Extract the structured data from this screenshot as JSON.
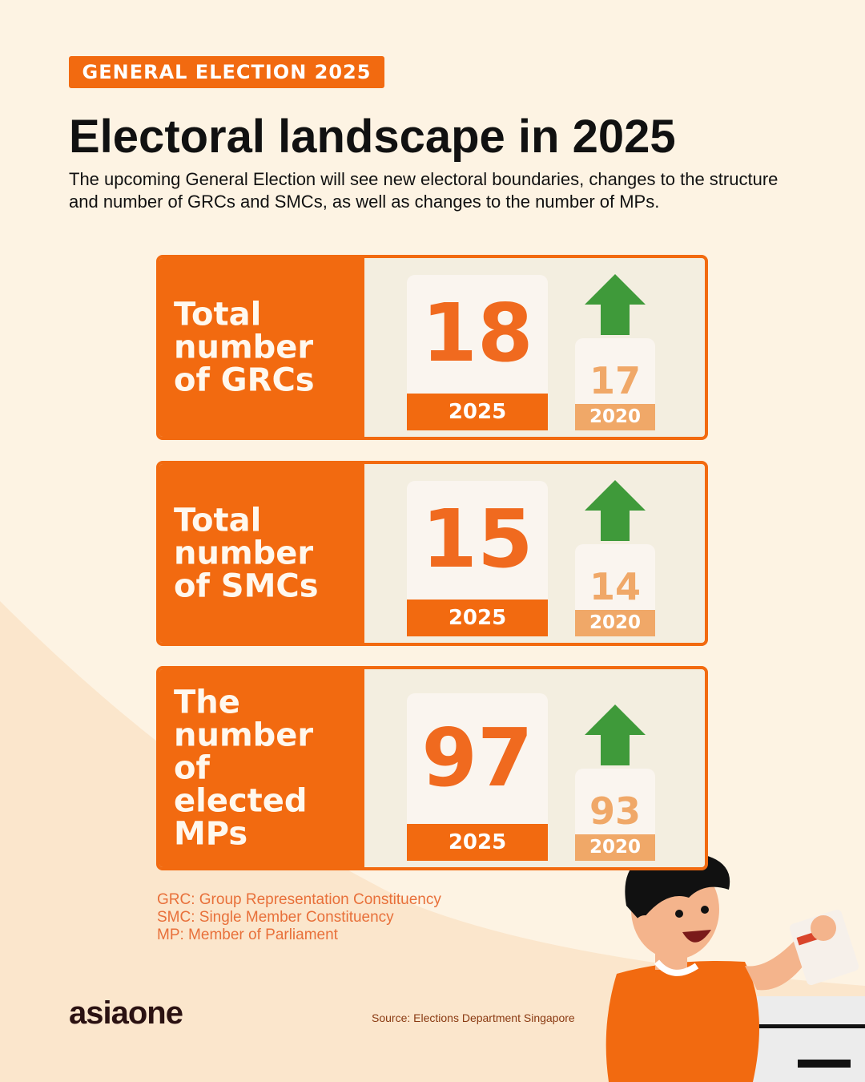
{
  "header": {
    "badge": "GENERAL ELECTION 2025",
    "title": "Electoral landscape in 2025",
    "subtitle": "The upcoming General Election will see new electoral boundaries, changes to the structure and number of GRCs and SMCs, as well as changes to the number of MPs."
  },
  "cards": [
    {
      "label": "Total number of GRCs",
      "current": {
        "value": "18",
        "year": "2025"
      },
      "previous": {
        "value": "17",
        "year": "2020"
      }
    },
    {
      "label": "Total number of SMCs",
      "current": {
        "value": "15",
        "year": "2025"
      },
      "previous": {
        "value": "14",
        "year": "2020"
      }
    },
    {
      "label": "The number of elected MPs",
      "current": {
        "value": "97",
        "year": "2025"
      },
      "previous": {
        "value": "93",
        "year": "2020"
      }
    }
  ],
  "glossary": [
    "GRC: Group Representation Constituency",
    "SMC: Single Member Constituency",
    "MP: Member of Parliament"
  ],
  "footer": {
    "logo": "asiaone",
    "source": "Source: Elections Department Singapore"
  }
}
